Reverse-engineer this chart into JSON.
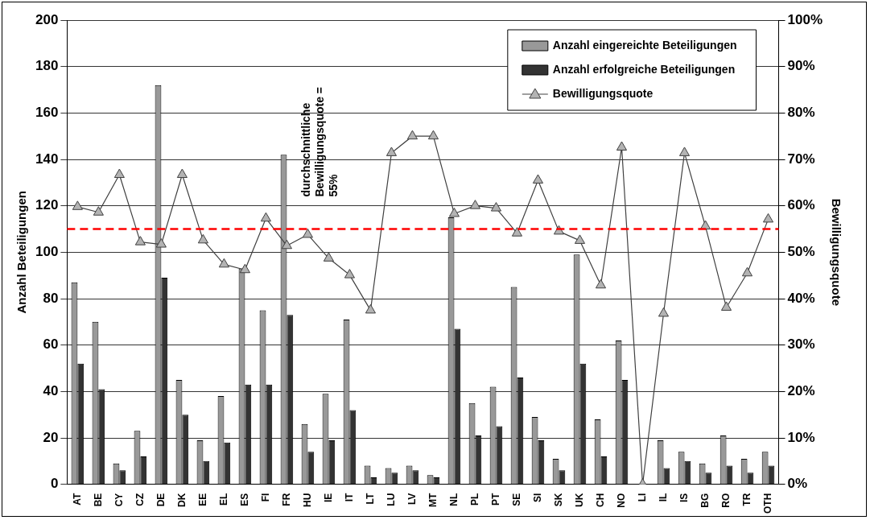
{
  "chart_data": {
    "type": "bar",
    "categories": [
      "AT",
      "BE",
      "CY",
      "CZ",
      "DE",
      "DK",
      "EE",
      "EL",
      "ES",
      "FI",
      "FR",
      "HU",
      "IE",
      "IT",
      "LT",
      "LU",
      "LV",
      "MT",
      "NL",
      "PL",
      "PT",
      "SE",
      "SI",
      "SK",
      "UK",
      "CH",
      "NO",
      "LI",
      "IL",
      "IS",
      "BG",
      "RO",
      "TR",
      "OTH"
    ],
    "series": [
      {
        "name": "Anzahl eingereichte Beteiligungen",
        "color": "#999999",
        "values": [
          87,
          70,
          9,
          23,
          172,
          45,
          19,
          38,
          93,
          75,
          142,
          26,
          39,
          71,
          8,
          7,
          8,
          4,
          115,
          35,
          42,
          85,
          29,
          11,
          99,
          28,
          62,
          0,
          19,
          14,
          9,
          21,
          11,
          14
        ]
      },
      {
        "name": "Anzahl erfolgreiche Beteiligungen",
        "color": "#333333",
        "values": [
          52,
          41,
          6,
          12,
          89,
          30,
          10,
          18,
          43,
          43,
          73,
          14,
          19,
          32,
          3,
          5,
          6,
          3,
          67,
          21,
          25,
          46,
          19,
          6,
          52,
          12,
          45,
          0,
          7,
          10,
          5,
          8,
          5,
          8
        ]
      },
      {
        "name": "Bewilligungsquote",
        "type": "line",
        "axis": "y2",
        "color": "#404040",
        "marker": "triangle",
        "values": [
          59.8,
          58.6,
          66.7,
          52.2,
          51.7,
          66.7,
          52.6,
          47.4,
          46.2,
          57.3,
          51.4,
          53.8,
          48.7,
          45.1,
          37.5,
          71.4,
          75,
          75,
          58.3,
          60,
          59.5,
          54.1,
          65.5,
          54.5,
          52.5,
          42.9,
          72.6,
          0,
          36.8,
          71.4,
          55.6,
          38.1,
          45.5,
          57.1
        ]
      }
    ],
    "ylabel": "Anzahl Beteiligungen",
    "y2label": "Bewilligungsquote",
    "ylim": [
      0,
      200
    ],
    "yticks": [
      0,
      20,
      40,
      60,
      80,
      100,
      120,
      140,
      160,
      180,
      200
    ],
    "y2lim": [
      0,
      100
    ],
    "y2ticks": [
      {
        "value": 0,
        "label": "0%"
      },
      {
        "value": 10,
        "label": "10%"
      },
      {
        "value": 20,
        "label": "20%"
      },
      {
        "value": 30,
        "label": "30%"
      },
      {
        "value": 40,
        "label": "40%"
      },
      {
        "value": 50,
        "label": "50%"
      },
      {
        "value": 60,
        "label": "60%"
      },
      {
        "value": 70,
        "label": "70%"
      },
      {
        "value": 80,
        "label": "80%"
      },
      {
        "value": 90,
        "label": "90%"
      },
      {
        "value": 100,
        "label": "100%"
      }
    ],
    "ref_lines": [
      {
        "axis": "y2",
        "value": 55,
        "label": "durchschnittliche\nBewilligungsquote =\n55%",
        "color": "#ff0000",
        "line_style": "dashed"
      }
    ],
    "grid": "y",
    "legend": "top right"
  }
}
